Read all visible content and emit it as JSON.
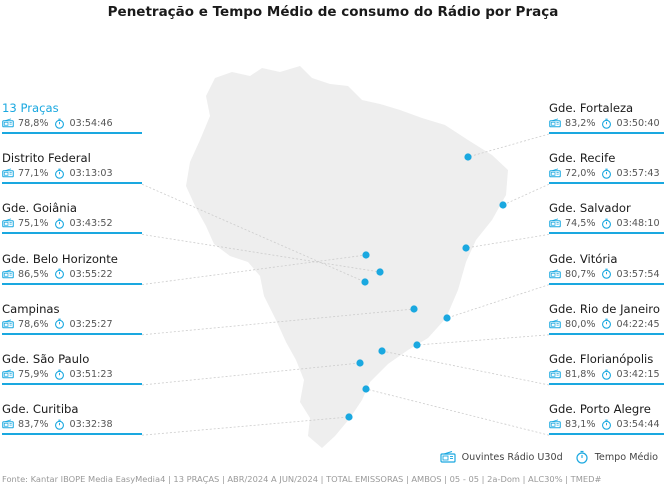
{
  "title": "Penetração e Tempo Médio de consumo do Rádio por Praça",
  "colors": {
    "accent": "#1aa8e0",
    "map_fill": "#eeeeee",
    "leader_line": "#cccccc"
  },
  "legend": {
    "listeners_label": "Ouvintes Rádio U30d",
    "listeners_icon": "radio-icon",
    "time_label": "Tempo Médio",
    "time_icon": "stopwatch-icon"
  },
  "cities_left": [
    {
      "name": "13 Praças",
      "penetration": "78,8%",
      "time": "03:54:46",
      "highlight": true
    },
    {
      "name": "Distrito Federal",
      "penetration": "77,1%",
      "time": "03:13:03"
    },
    {
      "name": "Gde. Goiânia",
      "penetration": "75,1%",
      "time": "03:43:52"
    },
    {
      "name": "Gde. Belo Horizonte",
      "penetration": "86,5%",
      "time": "03:55:22"
    },
    {
      "name": "Campinas",
      "penetration": "78,6%",
      "time": "03:25:27"
    },
    {
      "name": "Gde. São Paulo",
      "penetration": "75,9%",
      "time": "03:51:23"
    },
    {
      "name": "Gde. Curitiba",
      "penetration": "83,7%",
      "time": "03:32:38"
    }
  ],
  "cities_right": [
    {
      "name": "Gde. Fortaleza",
      "penetration": "83,2%",
      "time": "03:50:40"
    },
    {
      "name": "Gde. Recife",
      "penetration": "72,0%",
      "time": "03:57:43"
    },
    {
      "name": "Gde. Salvador",
      "penetration": "74,5%",
      "time": "03:48:10"
    },
    {
      "name": "Gde. Vitória",
      "penetration": "80,7%",
      "time": "03:57:54"
    },
    {
      "name": "Gde. Rio de Janeiro",
      "penetration": "80,0%",
      "time": "04:22:45"
    },
    {
      "name": "Gde. Florianópolis",
      "penetration": "81,8%",
      "time": "03:42:15"
    },
    {
      "name": "Gde. Porto Alegre",
      "penetration": "83,1%",
      "time": "03:54:44"
    }
  ],
  "source": "Fonte: Kantar IBOPE Media EasyMedia4 | 13 PRAÇAS | ABR/2024 A JUN/2024 | TOTAL EMISSORAS | AMBOS | 05 - 05 | 2a-Dom | ALC30% | TMED#"
}
